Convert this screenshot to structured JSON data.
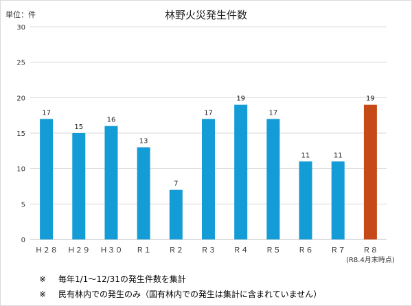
{
  "chart_data": {
    "type": "bar",
    "title": "林野火災発生件数",
    "unit_label": "単位：件",
    "categories": [
      "Ｈ２８",
      "Ｈ２９",
      "Ｈ３０",
      "Ｒ１",
      "Ｒ２",
      "Ｒ３",
      "Ｒ４",
      "Ｒ５",
      "Ｒ６",
      "Ｒ７",
      "Ｒ８"
    ],
    "values": [
      17,
      15,
      16,
      13,
      7,
      17,
      19,
      17,
      11,
      11,
      19
    ],
    "ylim": [
      0,
      30
    ],
    "yticks": [
      0,
      5,
      10,
      15,
      20,
      25,
      30
    ],
    "grid": true,
    "bar_color": "#149cd6",
    "highlight_color": "#c54a17",
    "highlight_index": 10,
    "highlight_sublabel": "(R8.4月末時点)"
  },
  "notes": [
    {
      "mark": "※",
      "text": "毎年1/1～12/31の発生件数を集計"
    },
    {
      "mark": "※",
      "text": "民有林内での発生のみ（国有林内での発生は集計に含まれていません）"
    }
  ]
}
